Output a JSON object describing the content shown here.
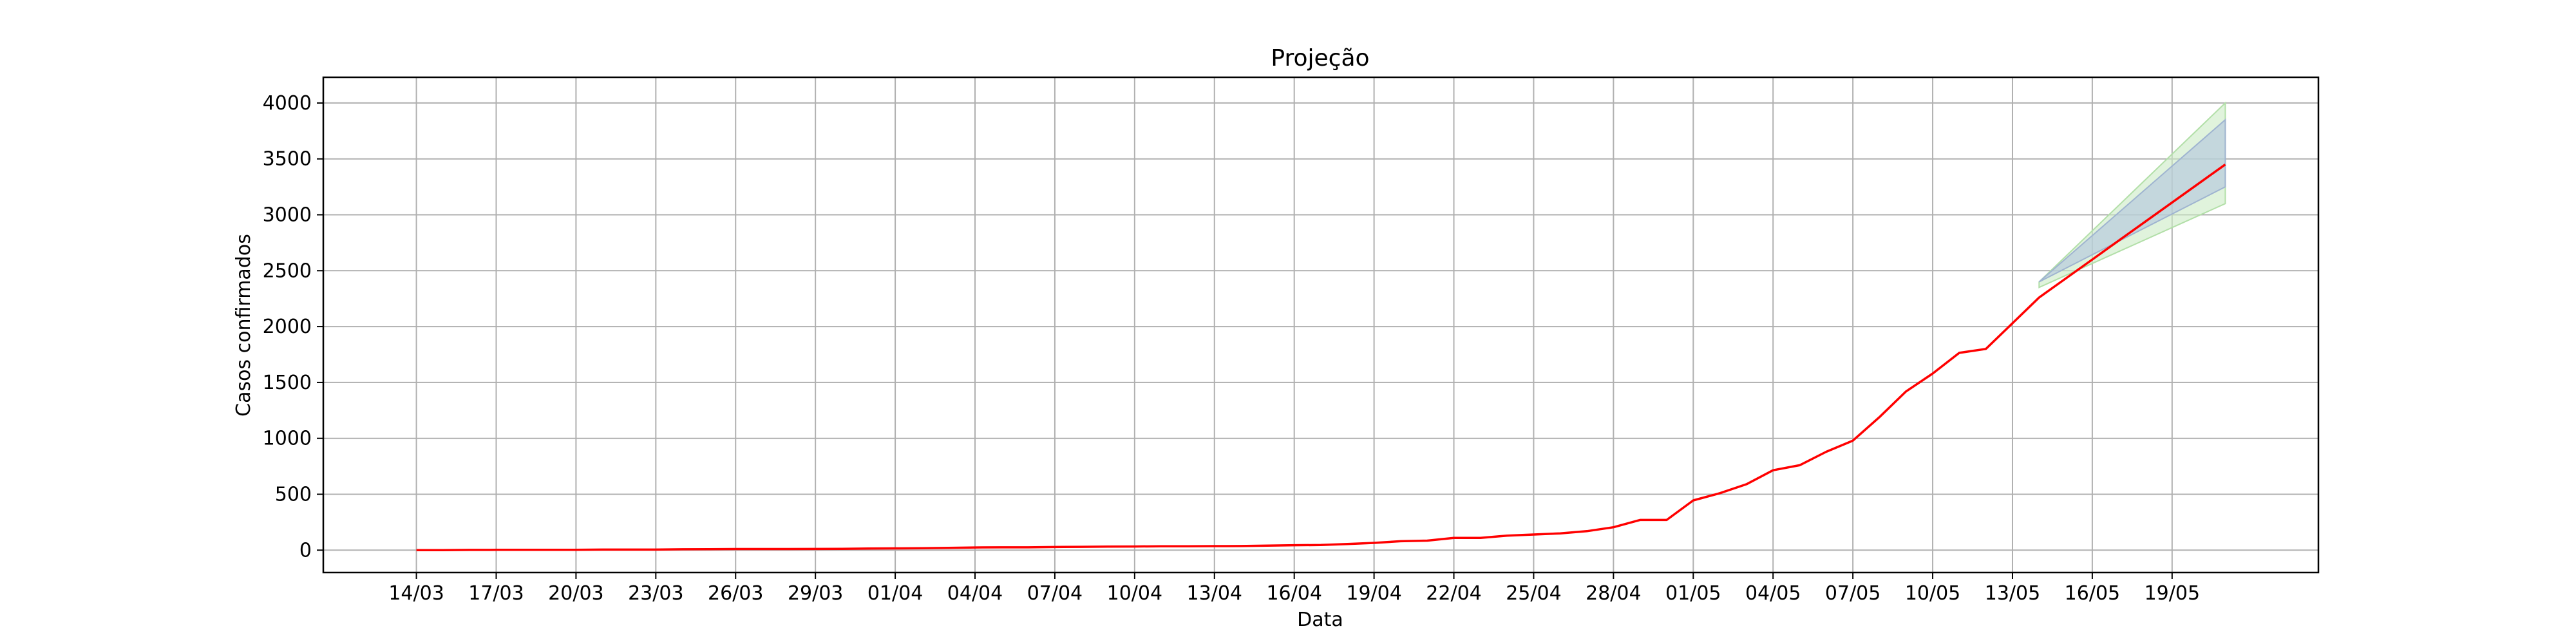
{
  "chart_data": {
    "type": "line",
    "title": "Projeção",
    "xlabel": "Data",
    "ylabel": "Casos confirmados",
    "ylim": [
      -200,
      4230
    ],
    "grid": true,
    "x_ticks": [
      "14/03",
      "17/03",
      "20/03",
      "23/03",
      "26/03",
      "29/03",
      "01/04",
      "04/04",
      "07/04",
      "10/04",
      "13/04",
      "16/04",
      "19/04",
      "22/04",
      "25/04",
      "28/04",
      "01/05",
      "04/05",
      "07/05",
      "10/05",
      "13/05",
      "16/05",
      "19/05"
    ],
    "y_ticks": [
      0,
      500,
      1000,
      1500,
      2000,
      2500,
      3000,
      3500,
      4000
    ],
    "colors": {
      "observed_line": "#ff0000",
      "inner_band": "#b0c4de",
      "outer_band": "#ccebc5",
      "grid": "#b0b0b0"
    },
    "series": [
      {
        "x": [
          "14/03",
          "15/03",
          "16/03",
          "17/03",
          "18/03",
          "19/03",
          "20/03",
          "21/03",
          "22/03",
          "23/03",
          "24/03",
          "25/03",
          "26/03",
          "27/03",
          "28/03",
          "29/03",
          "30/03",
          "31/03",
          "01/04",
          "02/04",
          "03/04",
          "04/04",
          "05/04",
          "06/04",
          "07/04",
          "08/04",
          "09/04",
          "10/04",
          "11/04",
          "12/04",
          "13/04",
          "14/04",
          "15/04",
          "16/04",
          "17/04",
          "18/04",
          "19/04",
          "20/04",
          "21/04",
          "22/04",
          "23/04",
          "24/04",
          "25/04",
          "26/04",
          "27/04",
          "28/04",
          "29/04",
          "30/04",
          "01/05",
          "02/05",
          "03/05",
          "04/05",
          "05/05",
          "06/05",
          "07/05",
          "08/05",
          "09/05",
          "10/05",
          "11/05",
          "12/05",
          "13/05",
          "14/05",
          "15/05",
          "16/05",
          "17/05",
          "18/05",
          "19/05",
          "20/05",
          "21/05"
        ],
        "values": [
          0,
          0,
          2,
          3,
          3,
          3,
          3,
          5,
          5,
          5,
          8,
          9,
          10,
          10,
          10,
          11,
          12,
          15,
          16,
          18,
          20,
          24,
          25,
          25,
          28,
          30,
          32,
          33,
          35,
          35,
          36,
          37,
          40,
          44,
          46,
          55,
          65,
          80,
          85,
          110,
          110,
          130,
          140,
          150,
          170,
          205,
          270,
          270,
          445,
          510,
          590,
          715,
          760,
          880,
          980,
          1190,
          1420,
          1580,
          1765,
          1800,
          2030,
          2260,
          2430,
          2600,
          2770,
          2940,
          3110,
          3280,
          3450
        ]
      }
    ],
    "projection_band_inner": {
      "x": [
        "14/05",
        "21/05"
      ],
      "lower": [
        2400,
        3250
      ],
      "upper": [
        2400,
        3850
      ]
    },
    "projection_band_outer": {
      "x": [
        "14/05",
        "21/05"
      ],
      "lower": [
        2350,
        3100
      ],
      "upper": [
        2400,
        4000
      ]
    }
  }
}
